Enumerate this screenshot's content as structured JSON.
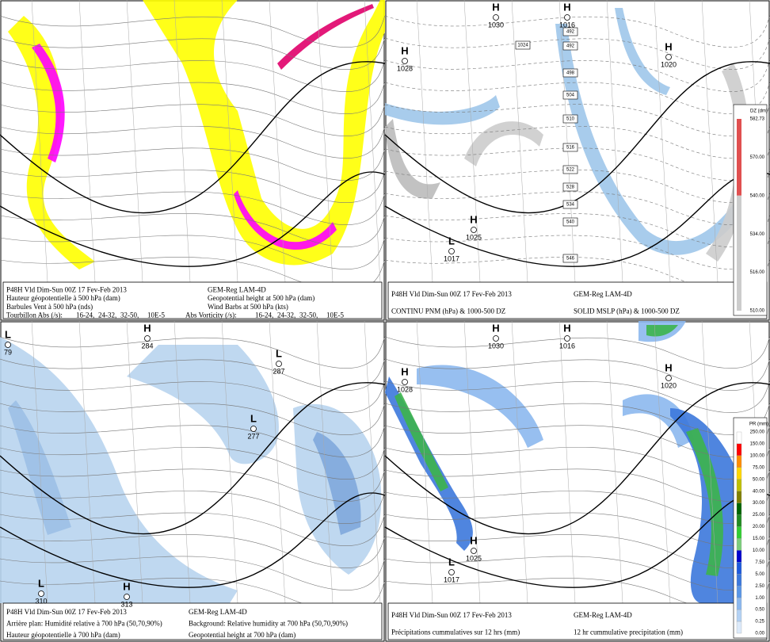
{
  "panels": [
    {
      "caption_left": [
        "P48H Vld Dim-Sun 00Z 17 Fev-Feb 2013",
        "Hauteur géopotentielle à 500 hPa (dam)",
        "Barbules Vent à 500 hPa (nds)"
      ],
      "caption_right": [
        "GEM-Reg LAM-4D",
        "Geopotential height at 500 hPa (dam)",
        "Wind Barbs at 500 hPa (kts)"
      ],
      "vorticity": [
        {
          "label": "Tourbillon Abs (/s):",
          "ranges": [
            "16-24,",
            "24-32,",
            "32-50,"
          ],
          "unit": "10E-5"
        },
        {
          "label": "Abs Vorticity (/s):",
          "ranges": [
            "16-24,",
            "24-32,",
            "32-50,"
          ],
          "unit": "10E-5"
        }
      ]
    },
    {
      "caption_left": [
        "P48H Vld Dim-Sun 00Z 17 Fev-Feb 2013",
        "CONTINU PNM (hPa) & 1000-500 DZ"
      ],
      "caption_right": [
        "GEM-Reg LAM-4D",
        "SOLID  MSLP (hPa) & 1000-500 DZ"
      ],
      "centers": [
        {
          "letter": "H",
          "value": "1030"
        },
        {
          "letter": "H",
          "value": "1016"
        },
        {
          "letter": "H",
          "value": "1028"
        },
        {
          "letter": "H",
          "value": "1020"
        },
        {
          "letter": "H",
          "value": "1025"
        },
        {
          "letter": "L",
          "value": "1017"
        }
      ],
      "thickness_labels": [
        "1024",
        "492",
        "492",
        "498",
        "504",
        "510",
        "516",
        "522",
        "528",
        "534",
        "540",
        "546"
      ],
      "legend": {
        "title": "DZ (dm)",
        "labels": [
          "582.73",
          "570.00",
          "540.00",
          "534.00",
          "516.00",
          "510.00"
        ]
      }
    },
    {
      "caption_left": [
        "P48H Vld Dim-Sun 00Z 17 Fev-Feb 2013",
        "Arrière plan: Humidité relative à 700 hPa (50,70,90%)",
        "Hauteur géopotentielle à 700 hPa (dam)"
      ],
      "caption_right": [
        "GEM-Reg LAM-4D",
        "Background: Relative humidity at 700 hPa (50,70,90%)",
        "Geopotential height at 700 hPa (dam)"
      ],
      "centers": [
        {
          "letter": "L",
          "value": "79"
        },
        {
          "letter": "H",
          "value": "284"
        },
        {
          "letter": "L",
          "value": "287"
        },
        {
          "letter": "L",
          "value": "277"
        },
        {
          "letter": "L",
          "value": "310"
        },
        {
          "letter": "H",
          "value": "313"
        }
      ]
    },
    {
      "caption_left": [
        "P48H Vld Dim-Sun 00Z 17 Fev-Feb 2013",
        "Précipitations cummulatives sur 12 hrs (mm)"
      ],
      "caption_right": [
        "GEM-Reg LAM-4D",
        "12 hr cummulative precipitation     (mm)"
      ],
      "centers": [
        {
          "letter": "H",
          "value": "1030"
        },
        {
          "letter": "H",
          "value": "1016"
        },
        {
          "letter": "H",
          "value": "1028"
        },
        {
          "letter": "H",
          "value": "1020"
        },
        {
          "letter": "H",
          "value": "1025"
        },
        {
          "letter": "L",
          "value": "1017"
        }
      ],
      "legend": {
        "title": "PR (mm)",
        "labels": [
          "250.00",
          "150.00",
          "100.00",
          "75.00",
          "50.00",
          "40.00",
          "30.00",
          "25.00",
          "20.00",
          "15.00",
          "10.00",
          "7.50",
          "5.00",
          "2.50",
          "1.00",
          "0.50",
          "0.25",
          "0.00"
        ]
      }
    }
  ]
}
